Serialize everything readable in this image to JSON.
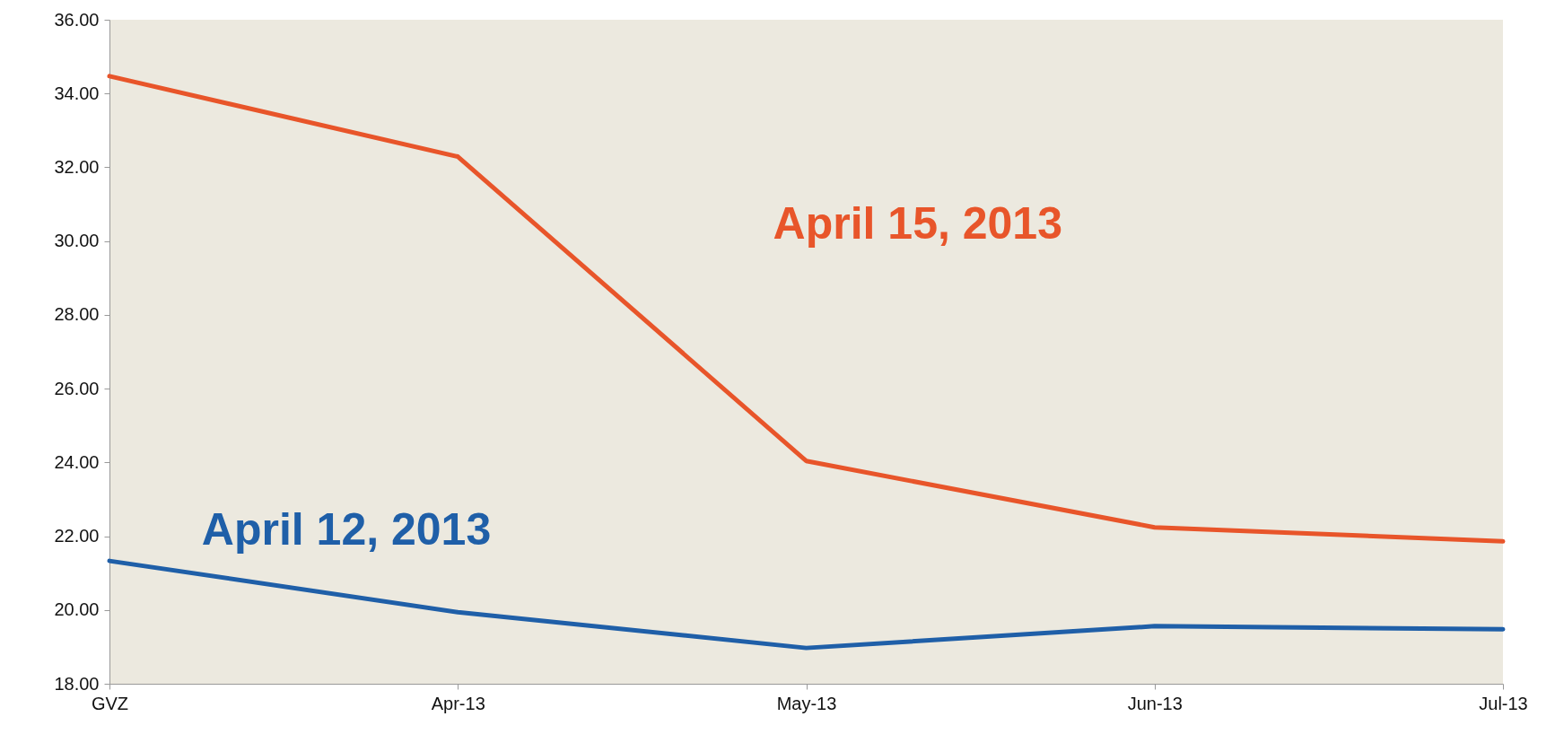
{
  "chart_data": {
    "type": "line",
    "categories": [
      "GVZ",
      "Apr-13",
      "May-13",
      "Jun-13",
      "Jul-13"
    ],
    "series": [
      {
        "name": "April 15, 2013",
        "color": "#e8552a",
        "values": [
          34.47,
          32.29,
          24.04,
          22.24,
          21.86
        ]
      },
      {
        "name": "April 12, 2013",
        "color": "#1f5fa8",
        "values": [
          21.33,
          19.94,
          18.97,
          19.56,
          19.48
        ]
      }
    ],
    "ylim": [
      18,
      36
    ],
    "yticks": [
      {
        "value": 18,
        "label": "18.00"
      },
      {
        "value": 20,
        "label": "20.00"
      },
      {
        "value": 22,
        "label": "22.00"
      },
      {
        "value": 24,
        "label": "24.00"
      },
      {
        "value": 26,
        "label": "26.00"
      },
      {
        "value": 28,
        "label": "28.00"
      },
      {
        "value": 30,
        "label": "30.00"
      },
      {
        "value": 32,
        "label": "32.00"
      },
      {
        "value": 34,
        "label": "34.00"
      },
      {
        "value": 36,
        "label": "36.00"
      }
    ],
    "grid": false,
    "legend": false,
    "marker": "none",
    "line_style": "solid"
  }
}
